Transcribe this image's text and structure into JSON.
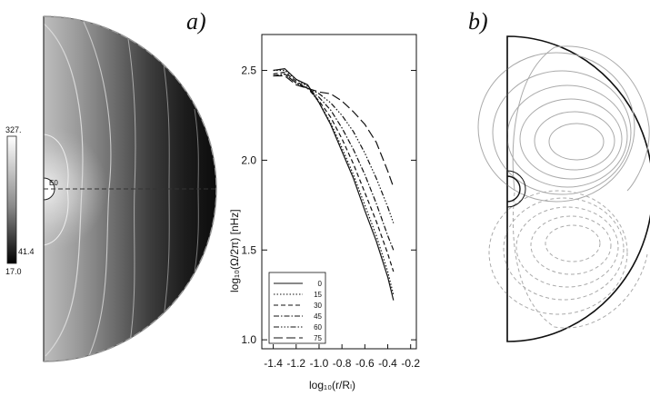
{
  "figure": {
    "panel_a_label": "a)",
    "panel_b_label": "b)"
  },
  "colorbar": {
    "max_label": "327.",
    "mid_label": "41.4",
    "min_label": "17.0",
    "center_label": "E0"
  },
  "chart_data": {
    "type": "line",
    "title": "",
    "xlabel": "log₁₀(r/Rₗ)",
    "ylabel": "log₁₀(Ω/2π) [nHz]",
    "xlim": [
      -1.5,
      -0.15
    ],
    "ylim": [
      0.95,
      2.7
    ],
    "x_ticks": [
      -1.4,
      -1.2,
      -1.0,
      -0.8,
      -0.6,
      -0.4,
      -0.2
    ],
    "x_tick_labels": [
      "-1.4",
      "-1.2",
      "-1.0",
      "-0.8",
      "-0.6",
      "-0.4",
      "-0.2"
    ],
    "y_ticks": [
      1.0,
      1.5,
      2.0,
      2.5
    ],
    "y_tick_labels": [
      "1.0",
      "1.5",
      "2.0",
      "2.5"
    ],
    "legend_position": "bottom-left",
    "series": [
      {
        "name": "0",
        "dash": "",
        "x": [
          -1.4,
          -1.3,
          -1.2,
          -1.1,
          -1.0,
          -0.9,
          -0.8,
          -0.7,
          -0.6,
          -0.5,
          -0.4,
          -0.35
        ],
        "y": [
          2.5,
          2.51,
          2.45,
          2.42,
          2.32,
          2.2,
          2.05,
          1.9,
          1.72,
          1.55,
          1.35,
          1.22
        ]
      },
      {
        "name": "15",
        "dash": "1.5,2",
        "x": [
          -1.4,
          -1.3,
          -1.2,
          -1.1,
          -1.0,
          -0.9,
          -0.8,
          -0.7,
          -0.6,
          -0.5,
          -0.4,
          -0.35
        ],
        "y": [
          2.5,
          2.5,
          2.45,
          2.41,
          2.32,
          2.21,
          2.07,
          1.92,
          1.75,
          1.58,
          1.38,
          1.25
        ]
      },
      {
        "name": "30",
        "dash": "5,3",
        "x": [
          -1.4,
          -1.3,
          -1.2,
          -1.1,
          -1.0,
          -0.9,
          -0.8,
          -0.7,
          -0.6,
          -0.5,
          -0.4,
          -0.35
        ],
        "y": [
          2.48,
          2.49,
          2.44,
          2.4,
          2.33,
          2.24,
          2.12,
          1.98,
          1.82,
          1.66,
          1.48,
          1.38
        ]
      },
      {
        "name": "45",
        "dash": "6,2,1.5,2",
        "x": [
          -1.4,
          -1.3,
          -1.2,
          -1.1,
          -1.0,
          -0.9,
          -0.8,
          -0.7,
          -0.6,
          -0.5,
          -0.4,
          -0.35
        ],
        "y": [
          2.47,
          2.48,
          2.43,
          2.4,
          2.35,
          2.28,
          2.18,
          2.06,
          1.92,
          1.76,
          1.58,
          1.5
        ]
      },
      {
        "name": "60",
        "dash": "6,2,1.5,2,1.5,2,1.5,2",
        "x": [
          -1.4,
          -1.3,
          -1.2,
          -1.1,
          -1.0,
          -0.9,
          -0.8,
          -0.7,
          -0.6,
          -0.5,
          -0.4,
          -0.35
        ],
        "y": [
          2.47,
          2.48,
          2.43,
          2.4,
          2.37,
          2.32,
          2.25,
          2.16,
          2.04,
          1.9,
          1.74,
          1.65
        ]
      },
      {
        "name": "75",
        "dash": "10,4",
        "x": [
          -1.4,
          -1.3,
          -1.2,
          -1.1,
          -1.0,
          -0.9,
          -0.8,
          -0.7,
          -0.6,
          -0.5,
          -0.4,
          -0.35
        ],
        "y": [
          2.47,
          2.47,
          2.42,
          2.4,
          2.38,
          2.37,
          2.33,
          2.27,
          2.2,
          2.1,
          1.94,
          1.85
        ]
      }
    ]
  }
}
